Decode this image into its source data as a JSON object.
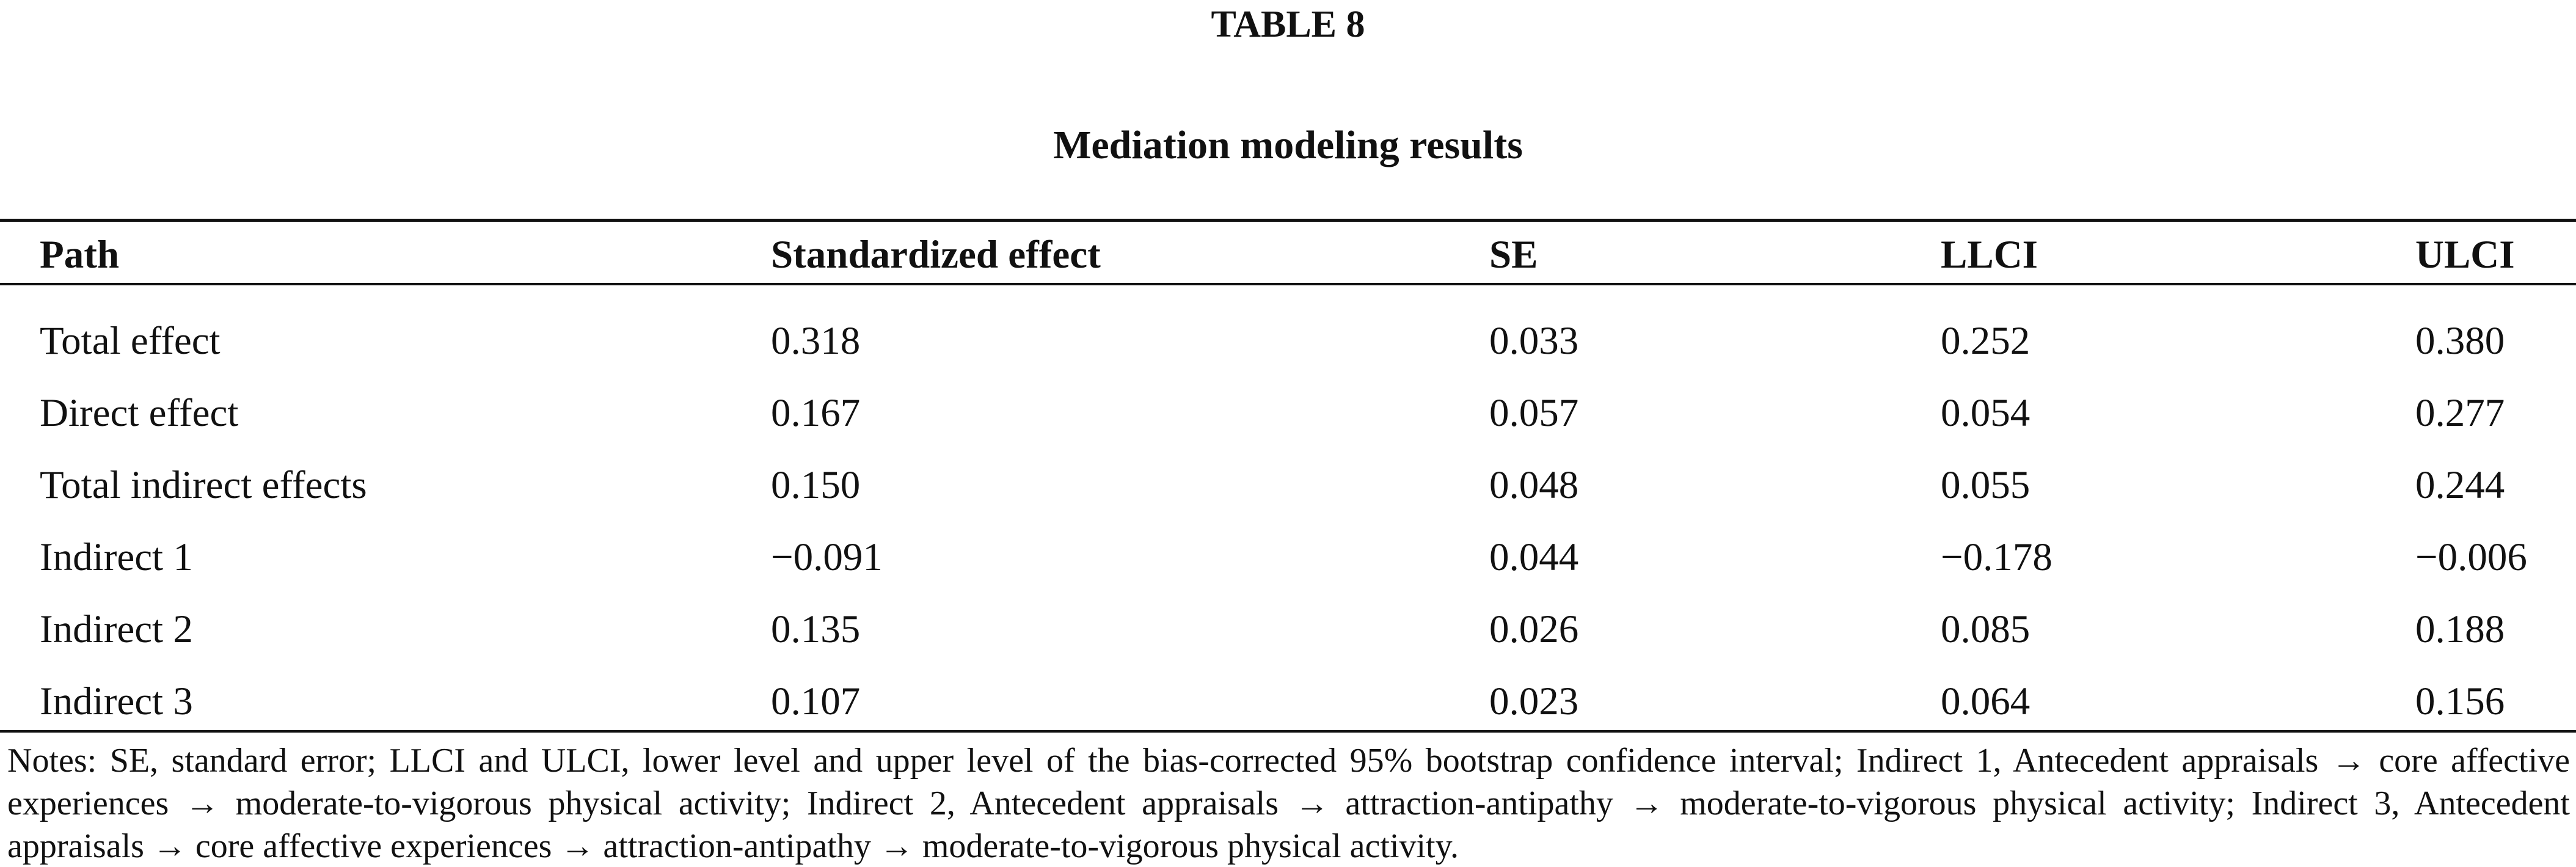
{
  "table": {
    "label": "TABLE 8",
    "title": "Mediation modeling results",
    "headers": [
      "Path",
      "Standardized effect",
      "SE",
      "LLCI",
      "ULCI"
    ],
    "rows": [
      [
        "Total effect",
        "0.318",
        "0.033",
        "0.252",
        "0.380"
      ],
      [
        "Direct effect",
        "0.167",
        "0.057",
        "0.054",
        "0.277"
      ],
      [
        "Total indirect effects",
        "0.150",
        "0.048",
        "0.055",
        "0.244"
      ],
      [
        "Indirect 1",
        "−0.091",
        "0.044",
        "−0.178",
        "−0.006"
      ],
      [
        "Indirect 2",
        "0.135",
        "0.026",
        "0.085",
        "0.188"
      ],
      [
        "Indirect 3",
        "0.107",
        "0.023",
        "0.064",
        "0.156"
      ]
    ],
    "notes": "Notes: SE, standard error; LLCI and ULCI, lower level and upper level of the bias-corrected 95% bootstrap confidence interval; Indirect 1, Antecedent appraisals → core affective experiences → moderate-to-vigorous physical activity; Indirect 2, Antecedent appraisals → attraction-antipathy → moderate-to-vigorous physical activity; Indirect 3, Antecedent appraisals → core affective experiences → attraction-antipathy → moderate-to-vigorous physical activity."
  }
}
